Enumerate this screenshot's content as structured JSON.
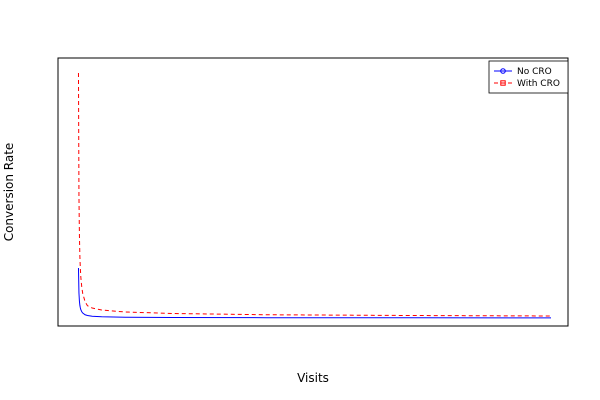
{
  "chart_data": {
    "type": "line",
    "xlabel": "Visits",
    "ylabel": "Conversion Rate",
    "grid": false,
    "legend_position": "top-right",
    "xlim": [
      0,
      1000
    ],
    "ylim": [
      0,
      1
    ],
    "series": [
      {
        "name": "No CRO",
        "color": "#0000ff",
        "line_style": "solid",
        "marker": "circle",
        "x": [
          1,
          2,
          3,
          4,
          5,
          6,
          8,
          10,
          15,
          20,
          30,
          50,
          100,
          200,
          400,
          700,
          1000
        ],
        "y": [
          0.2,
          0.1,
          0.067,
          0.05,
          0.04,
          0.033,
          0.025,
          0.02,
          0.013,
          0.01,
          0.007,
          0.005,
          0.003,
          0.002,
          0.0012,
          0.0008,
          0.0005
        ]
      },
      {
        "name": "With CRO",
        "color": "#ff0000",
        "line_style": "dashed",
        "marker": "square",
        "x": [
          1,
          2,
          3,
          4,
          5,
          6,
          8,
          10,
          15,
          20,
          30,
          50,
          100,
          200,
          400,
          700,
          1000
        ],
        "y": [
          0.98,
          0.49,
          0.33,
          0.245,
          0.196,
          0.163,
          0.123,
          0.098,
          0.065,
          0.049,
          0.04,
          0.032,
          0.024,
          0.018,
          0.013,
          0.01,
          0.008
        ]
      }
    ]
  }
}
